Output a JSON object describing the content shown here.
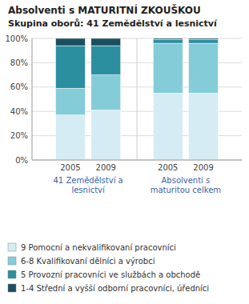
{
  "chart_data": {
    "type": "bar",
    "stacked": true,
    "title": "Absolventi s MATURITNÍ ZKOUŠKOU",
    "subtitle": "Skupina oborů: 41 Zemědělství a lesnictví",
    "annotations": [
      "41 Zemědělství a\nlesnictví",
      "Absolventi s\nmaturitou celkem"
    ],
    "categories": [
      "2005",
      "2009",
      "2005",
      "2009"
    ],
    "series": [
      {
        "name": "9 Pomocní a nekvalifikovaní pracovníci",
        "color": "#d6ecf5",
        "values": [
          37,
          41,
          55,
          55
        ]
      },
      {
        "name": "6-8 Kvalifikovaní dělníci a výrobci",
        "color": "#85ccd9",
        "values": [
          22,
          29,
          41,
          41
        ]
      },
      {
        "name": "5 Provozní pracovníci ve službách a obchodě",
        "color": "#2b8fa0",
        "values": [
          35,
          24,
          3,
          3
        ]
      },
      {
        "name": "1-4 Střední a vyšší odborní pracovníci, úředníci",
        "color": "#1b4f5f",
        "values": [
          6,
          6,
          1,
          1
        ]
      }
    ],
    "ylim": [
      0,
      100
    ],
    "yticks": [
      {
        "value": 0,
        "label": "0%"
      },
      {
        "value": 20,
        "label": "20%"
      },
      {
        "value": 40,
        "label": "40%"
      },
      {
        "value": 60,
        "label": "60%"
      },
      {
        "value": 80,
        "label": "80%"
      },
      {
        "value": 100,
        "label": "100%"
      }
    ],
    "grid": true,
    "legend": "lower left"
  }
}
